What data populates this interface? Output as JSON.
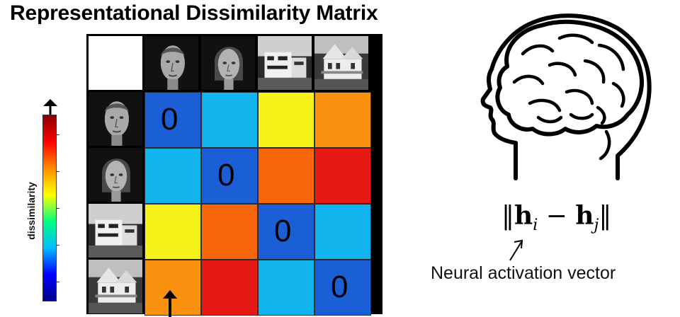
{
  "title": "Representational Dissimilarity Matrix",
  "colorbar": {
    "label": "dissimilarity",
    "colors": [
      "#00008b",
      "#0000ff",
      "#00bfff",
      "#00ff7f",
      "#ffff00",
      "#ff8c00",
      "#ff0000",
      "#8b0000"
    ]
  },
  "matrix": {
    "stimuli": [
      "face-man-icon",
      "face-woman-icon",
      "building-modern-icon",
      "house-victorian-icon"
    ],
    "zero_label": "0",
    "cells": [
      [
        "#1a5fd6",
        "#13b4ee",
        "#f7f21a",
        "#fa920f"
      ],
      [
        "#13b4ee",
        "#1a5fd6",
        "#f9660b",
        "#e51a14"
      ],
      [
        "#f7f21a",
        "#f9660b",
        "#1a5fd6",
        "#13b4ee"
      ],
      [
        "#fa920f",
        "#e51a14",
        "#13b4ee",
        "#1a5fd6"
      ]
    ]
  },
  "formula": {
    "left_bars": "‖",
    "h1": "h",
    "i": "i",
    "minus": " − ",
    "h2": "h",
    "j": "j",
    "right_bars": "‖"
  },
  "caption": "Neural activation vector"
}
